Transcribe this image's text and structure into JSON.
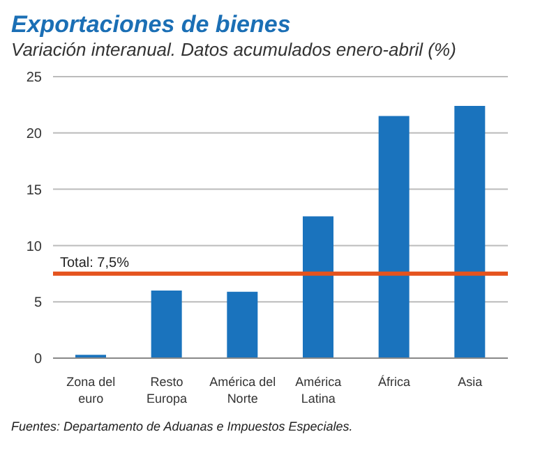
{
  "chart_data": {
    "type": "bar",
    "title": "Exportaciones de bienes",
    "subtitle": "Variación interanual. Datos acumulados enero-abril (%)",
    "categories": [
      "Zona del euro",
      "Resto Europa",
      "América del Norte",
      "América Latina",
      "África",
      "Asia"
    ],
    "values": [
      0.3,
      6.0,
      5.9,
      12.6,
      21.5,
      22.4
    ],
    "color": "#1a73bd",
    "ylim": [
      0,
      25
    ],
    "yticks": [
      0,
      5,
      10,
      15,
      20,
      25
    ],
    "grid": "y",
    "ref_lines": [
      {
        "axis": "y",
        "value": 7.5,
        "label": "Total: 7,5%",
        "color": "#e5531e"
      }
    ],
    "annotations": [
      "Fuentes: Departamento de Aduanas e Impuestos Especiales."
    ]
  }
}
